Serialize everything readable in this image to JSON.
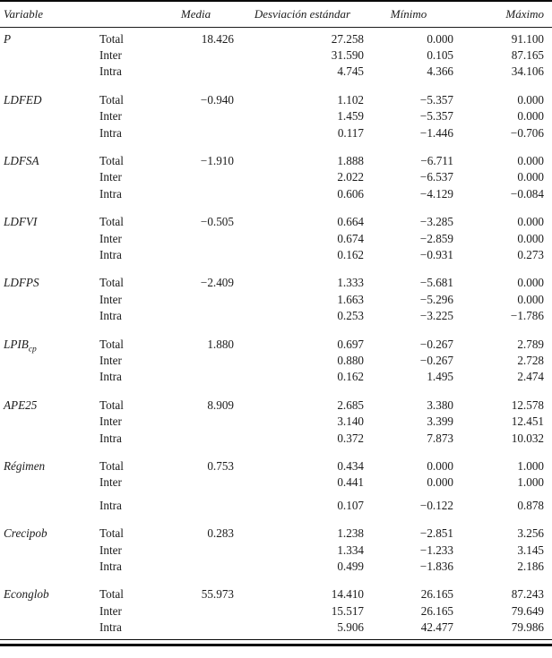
{
  "page": {
    "background": "#ffffff",
    "text_color": "#1b1b1b",
    "rule_color": "#0a0a0a"
  },
  "table": {
    "headers": {
      "variable": "Variable",
      "media": "Media",
      "sd": "Desviación estándar",
      "min": "Mínimo",
      "max": "Máximo"
    },
    "scope_labels": [
      "Total",
      "Inter",
      "Intra"
    ],
    "groups": [
      {
        "variable": "P",
        "subscript": "",
        "rows": [
          {
            "label": "Total",
            "media": "18.426",
            "sd": "27.258",
            "min": "0.000",
            "max": "91.100"
          },
          {
            "label": "Inter",
            "media": "",
            "sd": "31.590",
            "min": "0.105",
            "max": "87.165"
          },
          {
            "label": "Intra",
            "media": "",
            "sd": "4.745",
            "min": "4.366",
            "max": "34.106"
          }
        ]
      },
      {
        "variable": "LDFED",
        "subscript": "",
        "rows": [
          {
            "label": "Total",
            "media": "−0.940",
            "sd": "1.102",
            "min": "−5.357",
            "max": "0.000"
          },
          {
            "label": "Inter",
            "media": "",
            "sd": "1.459",
            "min": "−5.357",
            "max": "0.000"
          },
          {
            "label": "Intra",
            "media": "",
            "sd": "0.117",
            "min": "−1.446",
            "max": "−0.706"
          }
        ]
      },
      {
        "variable": "LDFSA",
        "subscript": "",
        "rows": [
          {
            "label": "Total",
            "media": "−1.910",
            "sd": "1.888",
            "min": "−6.711",
            "max": "0.000"
          },
          {
            "label": "Inter",
            "media": "",
            "sd": "2.022",
            "min": "−6.537",
            "max": "0.000"
          },
          {
            "label": "Intra",
            "media": "",
            "sd": "0.606",
            "min": "−4.129",
            "max": "−0.084"
          }
        ]
      },
      {
        "variable": "LDFVI",
        "subscript": "",
        "rows": [
          {
            "label": "Total",
            "media": "−0.505",
            "sd": "0.664",
            "min": "−3.285",
            "max": "0.000"
          },
          {
            "label": "Inter",
            "media": "",
            "sd": "0.674",
            "min": "−2.859",
            "max": "0.000"
          },
          {
            "label": "Intra",
            "media": "",
            "sd": "0.162",
            "min": "−0.931",
            "max": "0.273"
          }
        ]
      },
      {
        "variable": "LDFPS",
        "subscript": "",
        "rows": [
          {
            "label": "Total",
            "media": "−2.409",
            "sd": "1.333",
            "min": "−5.681",
            "max": "0.000"
          },
          {
            "label": "Inter",
            "media": "",
            "sd": "1.663",
            "min": "−5.296",
            "max": "0.000"
          },
          {
            "label": "Intra",
            "media": "",
            "sd": "0.253",
            "min": "−3.225",
            "max": "−1.786"
          }
        ]
      },
      {
        "variable": "LPIB",
        "subscript": "cp",
        "rows": [
          {
            "label": "Total",
            "media": "1.880",
            "sd": "0.697",
            "min": "−0.267",
            "max": "2.789"
          },
          {
            "label": "Inter",
            "media": "",
            "sd": "0.880",
            "min": "−0.267",
            "max": "2.728"
          },
          {
            "label": "Intra",
            "media": "",
            "sd": "0.162",
            "min": "1.495",
            "max": "2.474"
          }
        ]
      },
      {
        "variable": "APE25",
        "subscript": "",
        "rows": [
          {
            "label": "Total",
            "media": "8.909",
            "sd": "2.685",
            "min": "3.380",
            "max": "12.578"
          },
          {
            "label": "Inter",
            "media": "",
            "sd": "3.140",
            "min": "3.399",
            "max": "12.451"
          },
          {
            "label": "Intra",
            "media": "",
            "sd": "0.372",
            "min": "7.873",
            "max": "10.032"
          }
        ]
      },
      {
        "variable": "Régimen",
        "subscript": "",
        "rows": [
          {
            "label": "Total",
            "media": "0.753",
            "sd": "0.434",
            "min": "0.000",
            "max": "1.000"
          },
          {
            "label": "Inter",
            "media": "",
            "sd": "0.441",
            "min": "0.000",
            "max": "1.000"
          },
          {
            "label": "Intra",
            "media": "",
            "sd": "0.107",
            "min": "−0.122",
            "max": "0.878",
            "extra_gap": true
          }
        ]
      },
      {
        "variable": "Crecipob",
        "subscript": "",
        "rows": [
          {
            "label": "Total",
            "media": "0.283",
            "sd": "1.238",
            "min": "−2.851",
            "max": "3.256"
          },
          {
            "label": "Inter",
            "media": "",
            "sd": "1.334",
            "min": "−1.233",
            "max": "3.145"
          },
          {
            "label": "Intra",
            "media": "",
            "sd": "0.499",
            "min": "−1.836",
            "max": "2.186"
          }
        ]
      },
      {
        "variable": "Econglob",
        "subscript": "",
        "rows": [
          {
            "label": "Total",
            "media": "55.973",
            "sd": "14.410",
            "min": "26.165",
            "max": "87.243"
          },
          {
            "label": "Inter",
            "media": "",
            "sd": "15.517",
            "min": "26.165",
            "max": "79.649"
          },
          {
            "label": "Intra",
            "media": "",
            "sd": "5.906",
            "min": "42.477",
            "max": "79.986"
          }
        ]
      }
    ]
  }
}
